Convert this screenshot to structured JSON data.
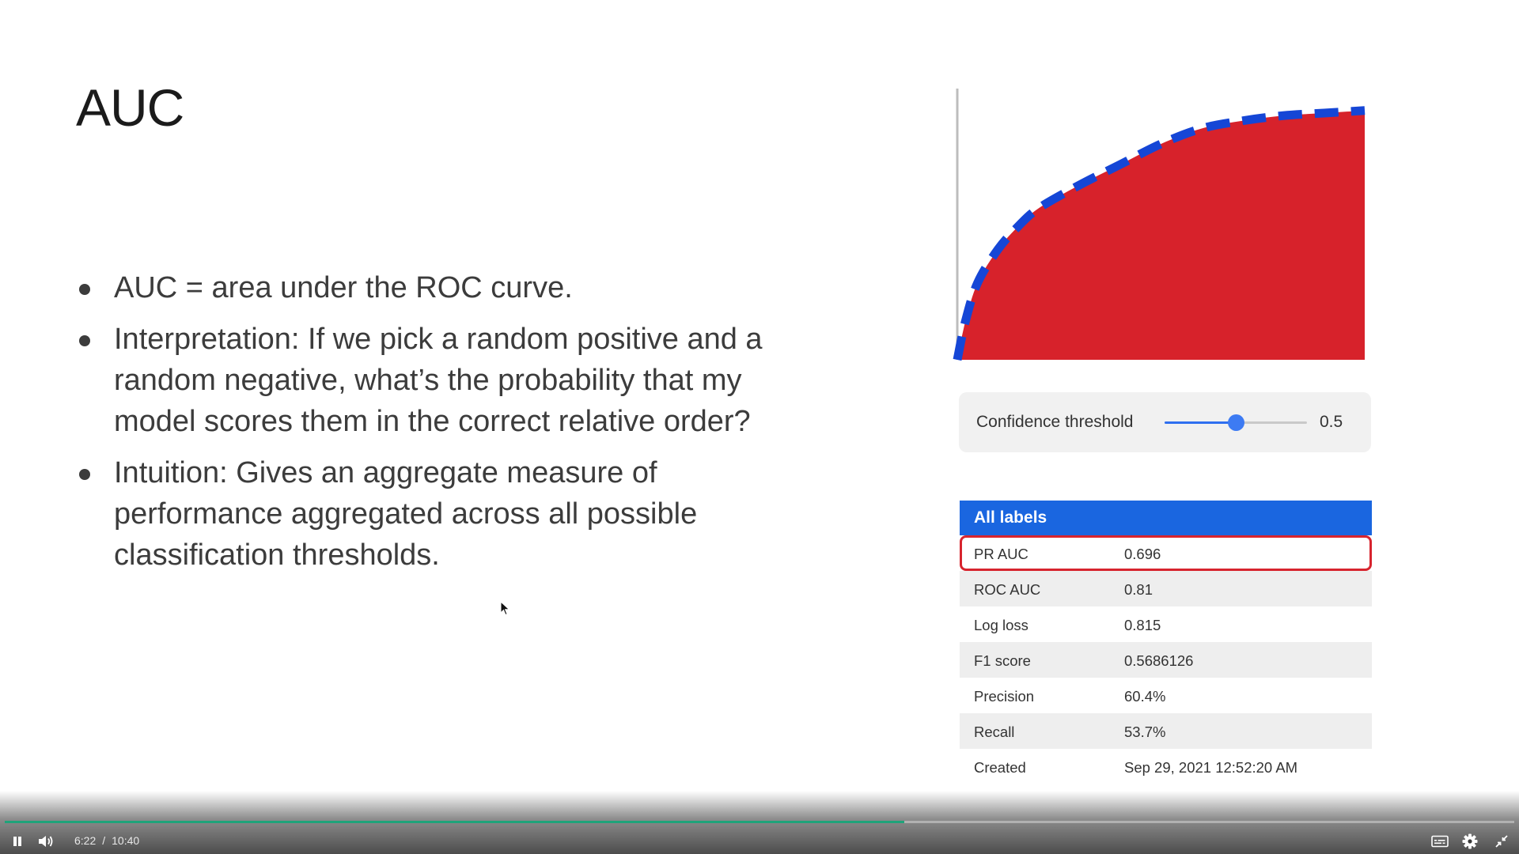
{
  "slide": {
    "title": "AUC",
    "bullets": [
      "AUC = area under the ROC curve.",
      "Interpretation: If we pick a random positive and a random negative, what’s the probability that my model scores them in the correct relative order?",
      "Intuition: Gives an aggregate measure of performance aggregated across all possible classification thresholds."
    ]
  },
  "threshold": {
    "label": "Confidence threshold",
    "value": "0.5",
    "fraction": 0.5
  },
  "metrics": {
    "header": "All labels",
    "rows": [
      {
        "key": "PR AUC",
        "value": "0.696"
      },
      {
        "key": "ROC  AUC",
        "value": "0.81"
      },
      {
        "key": "Log loss",
        "value": "0.815"
      },
      {
        "key": "F1 score",
        "value": "0.5686126"
      },
      {
        "key": "Precision",
        "value": "60.4%"
      },
      {
        "key": "Recall",
        "value": "53.7%"
      },
      {
        "key": "Created",
        "value": "Sep 29, 2021 12:52:20 AM"
      }
    ]
  },
  "player": {
    "current_time": "6:22",
    "separator": "/",
    "duration": "10:40",
    "progress_fraction": 0.596,
    "icons": [
      "pause-icon",
      "volume-icon",
      "captions-icon",
      "settings-icon",
      "exit-fullscreen-icon"
    ]
  },
  "colors": {
    "curve_fill": "#d7222b",
    "curve_line": "#1546d6",
    "table_header": "#1a66e0",
    "highlight_border": "#d7242e",
    "slider": "#3d7bf3",
    "progress_played": "#1fa37a"
  },
  "chart_data": {
    "type": "area",
    "x": [
      0,
      0.02,
      0.05,
      0.1,
      0.15,
      0.2,
      0.3,
      0.4,
      0.5,
      0.6,
      0.7,
      0.8,
      0.9,
      1.0
    ],
    "series": [
      {
        "values": [
          0,
          0.15,
          0.3,
          0.43,
          0.52,
          0.59,
          0.68,
          0.76,
          0.84,
          0.9,
          0.93,
          0.95,
          0.96,
          0.97
        ]
      }
    ],
    "xlim": [
      0,
      1
    ],
    "ylim": [
      0,
      1
    ],
    "grid": false,
    "legend": "none"
  }
}
